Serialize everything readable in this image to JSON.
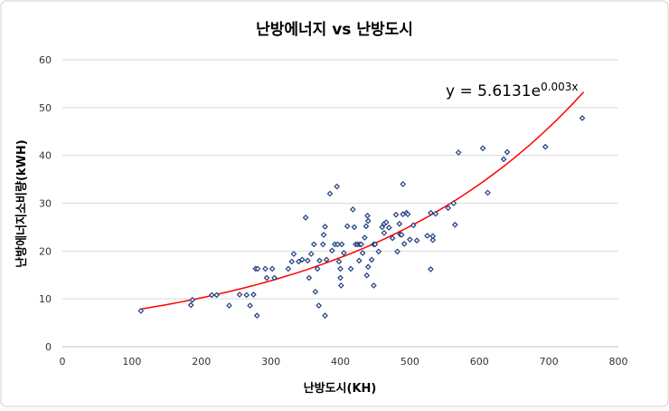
{
  "chart_data": {
    "type": "scatter",
    "title": "난방에너지 vs 난방도시",
    "xlabel": "난방도시(KH)",
    "ylabel": "난방에너지소비량(kWH)",
    "xlim": [
      0,
      800
    ],
    "ylim": [
      0,
      60
    ],
    "xticks": [
      0,
      100,
      200,
      300,
      400,
      500,
      600,
      700,
      800
    ],
    "yticks": [
      0,
      10,
      20,
      30,
      40,
      50,
      60
    ],
    "grid": "horizontal",
    "legend": "none",
    "marker_color": "#1f3f7f",
    "trend_color": "#ff0000",
    "trendline": {
      "type": "exponential",
      "a": 5.6131,
      "b": 0.003,
      "x_range": [
        113,
        750
      ],
      "label": "y = 5.6131e",
      "label_exp": "0.003x"
    },
    "points": [
      [
        113,
        7.5
      ],
      [
        185,
        8.7
      ],
      [
        187,
        9.8
      ],
      [
        215,
        10.8
      ],
      [
        222,
        10.8
      ],
      [
        240,
        8.6
      ],
      [
        255,
        10.9
      ],
      [
        265,
        10.8
      ],
      [
        270,
        8.6
      ],
      [
        275,
        10.9
      ],
      [
        278,
        16.3
      ],
      [
        280,
        6.5
      ],
      [
        281,
        16.3
      ],
      [
        292,
        16.3
      ],
      [
        294,
        14.4
      ],
      [
        302,
        16.3
      ],
      [
        305,
        14.4
      ],
      [
        325,
        16.3
      ],
      [
        330,
        17.8
      ],
      [
        333,
        19.4
      ],
      [
        340,
        17.8
      ],
      [
        345,
        18.2
      ],
      [
        350,
        27
      ],
      [
        353,
        18
      ],
      [
        355,
        14.4
      ],
      [
        358,
        19.4
      ],
      [
        362,
        21.4
      ],
      [
        364,
        11.5
      ],
      [
        367,
        16.3
      ],
      [
        369,
        8.6
      ],
      [
        370,
        18
      ],
      [
        375,
        21.4
      ],
      [
        376,
        23.4
      ],
      [
        378,
        25.1
      ],
      [
        378,
        6.5
      ],
      [
        380,
        18.2
      ],
      [
        385,
        32
      ],
      [
        388,
        20.1
      ],
      [
        392,
        21.4
      ],
      [
        395,
        33.5
      ],
      [
        396,
        21.4
      ],
      [
        398,
        17.8
      ],
      [
        400,
        16.3
      ],
      [
        400,
        14.4
      ],
      [
        401,
        12.8
      ],
      [
        402,
        21.4
      ],
      [
        405,
        19.6
      ],
      [
        410,
        25.2
      ],
      [
        415,
        16.3
      ],
      [
        418,
        28.7
      ],
      [
        420,
        25
      ],
      [
        422,
        21.4
      ],
      [
        425,
        21.4
      ],
      [
        427,
        18
      ],
      [
        428,
        21.4
      ],
      [
        430,
        21.4
      ],
      [
        432,
        19.6
      ],
      [
        435,
        22.8
      ],
      [
        437,
        25.2
      ],
      [
        438,
        14.9
      ],
      [
        439,
        27.4
      ],
      [
        440,
        26.3
      ],
      [
        440,
        16.7
      ],
      [
        445,
        18.2
      ],
      [
        448,
        21.4
      ],
      [
        448,
        12.8
      ],
      [
        450,
        21.4
      ],
      [
        455,
        19.9
      ],
      [
        460,
        25
      ],
      [
        463,
        23.8
      ],
      [
        463,
        25.7
      ],
      [
        466,
        26
      ],
      [
        470,
        24.9
      ],
      [
        475,
        22.7
      ],
      [
        480,
        27.6
      ],
      [
        482,
        19.9
      ],
      [
        485,
        25.7
      ],
      [
        486,
        23.5
      ],
      [
        488,
        23.4
      ],
      [
        490,
        27.7
      ],
      [
        490,
        34
      ],
      [
        492,
        21.5
      ],
      [
        495,
        28
      ],
      [
        497,
        27.7
      ],
      [
        500,
        22.4
      ],
      [
        505,
        25.4
      ],
      [
        510,
        22.2
      ],
      [
        525,
        23.2
      ],
      [
        530,
        28
      ],
      [
        530,
        16.2
      ],
      [
        533,
        22.3
      ],
      [
        533,
        23.1
      ],
      [
        537,
        27.8
      ],
      [
        555,
        29
      ],
      [
        563,
        30
      ],
      [
        565,
        25.5
      ],
      [
        570,
        40.6
      ],
      [
        605,
        41.5
      ],
      [
        612,
        32.2
      ],
      [
        635,
        39.2
      ],
      [
        640,
        40.7
      ],
      [
        695,
        41.8
      ],
      [
        748,
        47.8
      ]
    ]
  }
}
